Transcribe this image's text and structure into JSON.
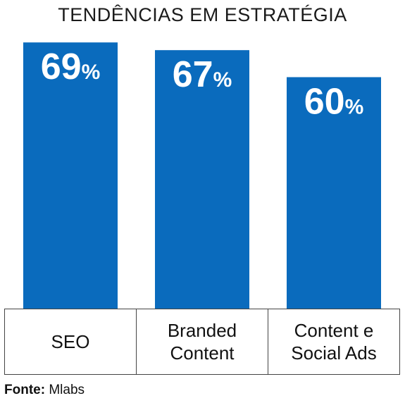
{
  "chart_data": {
    "type": "bar",
    "title": "TENDÊNCIAS EM ESTRATÉGIA",
    "categories": [
      "SEO",
      "Branded Content",
      "Content e Social Ads"
    ],
    "values": [
      69,
      67,
      60
    ],
    "value_suffix": "%",
    "bar_color": "#0a6bbd",
    "ylim": [
      0,
      80
    ]
  },
  "source": {
    "label": "Fonte:",
    "value": "Mlabs"
  }
}
